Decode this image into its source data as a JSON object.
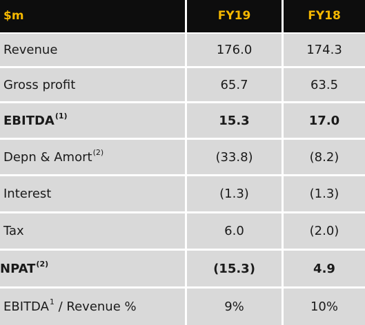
{
  "header": {
    "label": "$m",
    "col1": "FY19",
    "col2": "FY18"
  },
  "rows": [
    {
      "label": "Revenue",
      "sup": "",
      "fy19": "176.0",
      "fy18": "174.3",
      "bold": false
    },
    {
      "label": "Gross profit",
      "sup": "",
      "fy19": "65.7",
      "fy18": "63.5",
      "bold": false
    },
    {
      "label": "EBITDA",
      "sup": "(1)",
      "fy19": "15.3",
      "fy18": "17.0",
      "bold": true
    },
    {
      "label": "Depn & Amort",
      "sup": "(2)",
      "fy19": "(33.8)",
      "fy18": "(8.2)",
      "bold": false
    },
    {
      "label": "Interest",
      "sup": "",
      "fy19": "(1.3)",
      "fy18": "(1.3)",
      "bold": false
    },
    {
      "label": "Tax",
      "sup": "",
      "fy19": "6.0",
      "fy18": "(2.0)",
      "bold": false
    },
    {
      "label": "NPAT",
      "sup": "(2)",
      "fy19": "(15.3)",
      "fy18": "4.9",
      "bold": true
    },
    {
      "label": "EBITDA",
      "sup": "1",
      "label_suffix": " / Revenue %",
      "fy19": "9%",
      "fy18": "10%",
      "bold": false
    }
  ],
  "colors": {
    "header_bg": "#0d0d0d",
    "header_text": "#f5b800",
    "row_bg": "#d9d9d9",
    "divider": "#ffffff"
  }
}
